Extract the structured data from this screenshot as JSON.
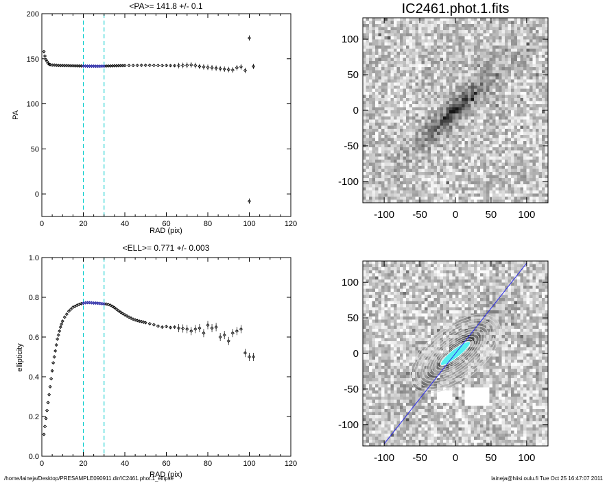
{
  "chart_data": [
    {
      "type": "scatter",
      "id": "pa",
      "title": "<PA>= 141.8 +/-   0.1",
      "xlabel": "RAD (pix)",
      "ylabel": "PA",
      "xlim": [
        0,
        120
      ],
      "ylim": [
        -25,
        200
      ],
      "xticks": [
        0,
        20,
        40,
        60,
        80,
        100,
        120
      ],
      "yticks": [
        0,
        50,
        100,
        150,
        200
      ],
      "ytick_labels": [
        "0",
        "50",
        "100",
        "150",
        "200"
      ],
      "fit_range_lines": [
        20,
        30
      ],
      "points": [
        [
          1,
          158
        ],
        [
          1.5,
          153
        ],
        [
          2,
          149
        ],
        [
          2.5,
          147
        ],
        [
          3,
          145
        ],
        [
          3.5,
          144
        ],
        [
          4,
          143.5
        ],
        [
          5,
          143
        ],
        [
          6,
          143
        ],
        [
          7,
          142.8
        ],
        [
          8,
          142.6
        ],
        [
          9,
          142.5
        ],
        [
          10,
          142.5
        ],
        [
          11,
          142.4
        ],
        [
          12,
          142.4
        ],
        [
          13,
          142.3
        ],
        [
          14,
          142.2
        ],
        [
          15,
          142.2
        ],
        [
          16,
          142.1
        ],
        [
          17,
          142.1
        ],
        [
          18,
          142
        ],
        [
          19,
          142
        ],
        [
          20,
          141.9
        ],
        [
          21,
          141.9
        ],
        [
          22,
          141.8
        ],
        [
          23,
          141.8
        ],
        [
          24,
          141.8
        ],
        [
          25,
          141.8
        ],
        [
          26,
          141.7
        ],
        [
          27,
          141.7
        ],
        [
          28,
          141.7
        ],
        [
          29,
          141.8
        ],
        [
          30,
          141.8
        ],
        [
          31,
          141.9
        ],
        [
          32,
          142
        ],
        [
          33,
          142
        ],
        [
          34,
          142.1
        ],
        [
          35,
          142.2
        ],
        [
          36,
          142.2
        ],
        [
          37,
          142.3
        ],
        [
          38,
          142.4
        ],
        [
          39,
          142.4
        ],
        [
          40,
          142.5
        ],
        [
          42,
          142.6
        ],
        [
          44,
          142.6
        ],
        [
          46,
          142.7
        ],
        [
          48,
          142.8
        ],
        [
          50,
          142.8
        ],
        [
          52,
          142.8
        ],
        [
          54,
          142.7
        ],
        [
          56,
          142.6
        ],
        [
          58,
          142.5
        ],
        [
          60,
          142.6
        ],
        [
          62,
          142.4
        ],
        [
          64,
          142.3
        ],
        [
          66,
          142.4
        ],
        [
          68,
          142.6
        ],
        [
          70,
          142.8
        ],
        [
          72,
          143.2
        ],
        [
          74,
          142.5
        ],
        [
          76,
          141.5
        ],
        [
          78,
          141
        ],
        [
          80,
          140.5
        ],
        [
          82,
          140
        ],
        [
          84,
          139.5
        ],
        [
          86,
          139
        ],
        [
          88,
          138.5
        ],
        [
          90,
          138
        ],
        [
          92,
          137.5
        ],
        [
          94,
          140
        ],
        [
          96,
          141
        ],
        [
          98,
          137
        ],
        [
          100,
          173
        ],
        [
          100,
          -8
        ],
        [
          102,
          141.5
        ]
      ]
    },
    {
      "type": "scatter",
      "id": "ell",
      "title": "<ELL>= 0.771 +/-  0.003",
      "xlabel": "RAD (pix)",
      "ylabel": "ellipticity",
      "xlim": [
        0,
        120
      ],
      "ylim": [
        0,
        1.0
      ],
      "xticks": [
        0,
        20,
        40,
        60,
        80,
        100,
        120
      ],
      "yticks": [
        0,
        0.2,
        0.4,
        0.6,
        0.8,
        1.0
      ],
      "ytick_labels": [
        "0.0",
        "0.2",
        "0.4",
        "0.6",
        "0.8",
        "1.0"
      ],
      "fit_range_lines": [
        20,
        30
      ],
      "points": [
        [
          1,
          0.11
        ],
        [
          1.5,
          0.15
        ],
        [
          2,
          0.19
        ],
        [
          2.5,
          0.23
        ],
        [
          3,
          0.27
        ],
        [
          3.5,
          0.31
        ],
        [
          4,
          0.35
        ],
        [
          4.5,
          0.39
        ],
        [
          5,
          0.43
        ],
        [
          5.5,
          0.47
        ],
        [
          6,
          0.5
        ],
        [
          6.5,
          0.53
        ],
        [
          7,
          0.56
        ],
        [
          7.5,
          0.59
        ],
        [
          8,
          0.61
        ],
        [
          8.5,
          0.63
        ],
        [
          9,
          0.65
        ],
        [
          9.5,
          0.665
        ],
        [
          10,
          0.68
        ],
        [
          11,
          0.7
        ],
        [
          12,
          0.715
        ],
        [
          13,
          0.73
        ],
        [
          14,
          0.74
        ],
        [
          15,
          0.75
        ],
        [
          16,
          0.755
        ],
        [
          17,
          0.76
        ],
        [
          18,
          0.765
        ],
        [
          19,
          0.768
        ],
        [
          20,
          0.77
        ],
        [
          21,
          0.772
        ],
        [
          22,
          0.773
        ],
        [
          23,
          0.773
        ],
        [
          24,
          0.772
        ],
        [
          25,
          0.771
        ],
        [
          26,
          0.771
        ],
        [
          27,
          0.77
        ],
        [
          28,
          0.769
        ],
        [
          29,
          0.768
        ],
        [
          30,
          0.767
        ],
        [
          31,
          0.766
        ],
        [
          32,
          0.764
        ],
        [
          33,
          0.76
        ],
        [
          34,
          0.755
        ],
        [
          35,
          0.748
        ],
        [
          36,
          0.74
        ],
        [
          37,
          0.732
        ],
        [
          38,
          0.725
        ],
        [
          39,
          0.718
        ],
        [
          40,
          0.712
        ],
        [
          41,
          0.706
        ],
        [
          42,
          0.7
        ],
        [
          43,
          0.695
        ],
        [
          44,
          0.69
        ],
        [
          45,
          0.686
        ],
        [
          46,
          0.683
        ],
        [
          47,
          0.68
        ],
        [
          48,
          0.678
        ],
        [
          49,
          0.675
        ],
        [
          50,
          0.672
        ],
        [
          52,
          0.667
        ],
        [
          54,
          0.662
        ],
        [
          56,
          0.655
        ],
        [
          58,
          0.65
        ],
        [
          60,
          0.653
        ],
        [
          62,
          0.648
        ],
        [
          64,
          0.65
        ],
        [
          66,
          0.645
        ],
        [
          68,
          0.643
        ],
        [
          70,
          0.64
        ],
        [
          72,
          0.63
        ],
        [
          74,
          0.64
        ],
        [
          76,
          0.645
        ],
        [
          78,
          0.62
        ],
        [
          80,
          0.66
        ],
        [
          82,
          0.645
        ],
        [
          84,
          0.65
        ],
        [
          86,
          0.6
        ],
        [
          88,
          0.61
        ],
        [
          90,
          0.58
        ],
        [
          92,
          0.62
        ],
        [
          94,
          0.63
        ],
        [
          96,
          0.64
        ],
        [
          98,
          0.52
        ],
        [
          100,
          0.5
        ],
        [
          102,
          0.5
        ]
      ]
    },
    {
      "type": "heatmap",
      "id": "img1",
      "title": "IC2461.phot.1.fits",
      "xlim": [
        -130,
        130
      ],
      "ylim": [
        -130,
        130
      ],
      "xticks": [
        -100,
        -50,
        0,
        50,
        100
      ],
      "yticks": [
        -100,
        -50,
        0,
        50,
        100
      ],
      "galaxy_position_angle_deg": 141.8,
      "galaxy_ellipticity": 0.771
    },
    {
      "type": "heatmap",
      "id": "img2",
      "title": "",
      "xlim": [
        -130,
        130
      ],
      "ylim": [
        -130,
        130
      ],
      "xticks": [
        -100,
        -50,
        0,
        50,
        100
      ],
      "yticks": [
        -100,
        -50,
        0,
        50,
        100
      ],
      "major_axis_line_slope": 1.27,
      "contour_count": 14
    }
  ],
  "footer": {
    "left": "/home/laineja/Desktop/PRESAMPLE090911.dir/IC2461.phot.1_ellipse",
    "right": "laineja@hiisi.oulu.fi  Tue Oct 25 16:47:07 2011"
  },
  "colors": {
    "axis": "#000000",
    "fit_line": "#00cccc",
    "fit_points": "#1a1aa0",
    "points": "#000000",
    "major_axis": "#2a2aee",
    "contour": "#dddddd",
    "core": "#55f0f0"
  }
}
